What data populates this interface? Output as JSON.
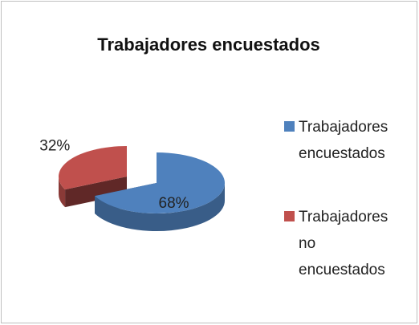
{
  "chart_data": {
    "type": "pie",
    "title": "Trabajadores encuestados",
    "categories": [
      "Trabajadores encuestados",
      "Trabajadores no encuestados"
    ],
    "values": [
      68,
      32
    ],
    "value_labels": [
      "68%",
      "32%"
    ],
    "colors": [
      "#4f81bd",
      "#c0504d"
    ]
  }
}
